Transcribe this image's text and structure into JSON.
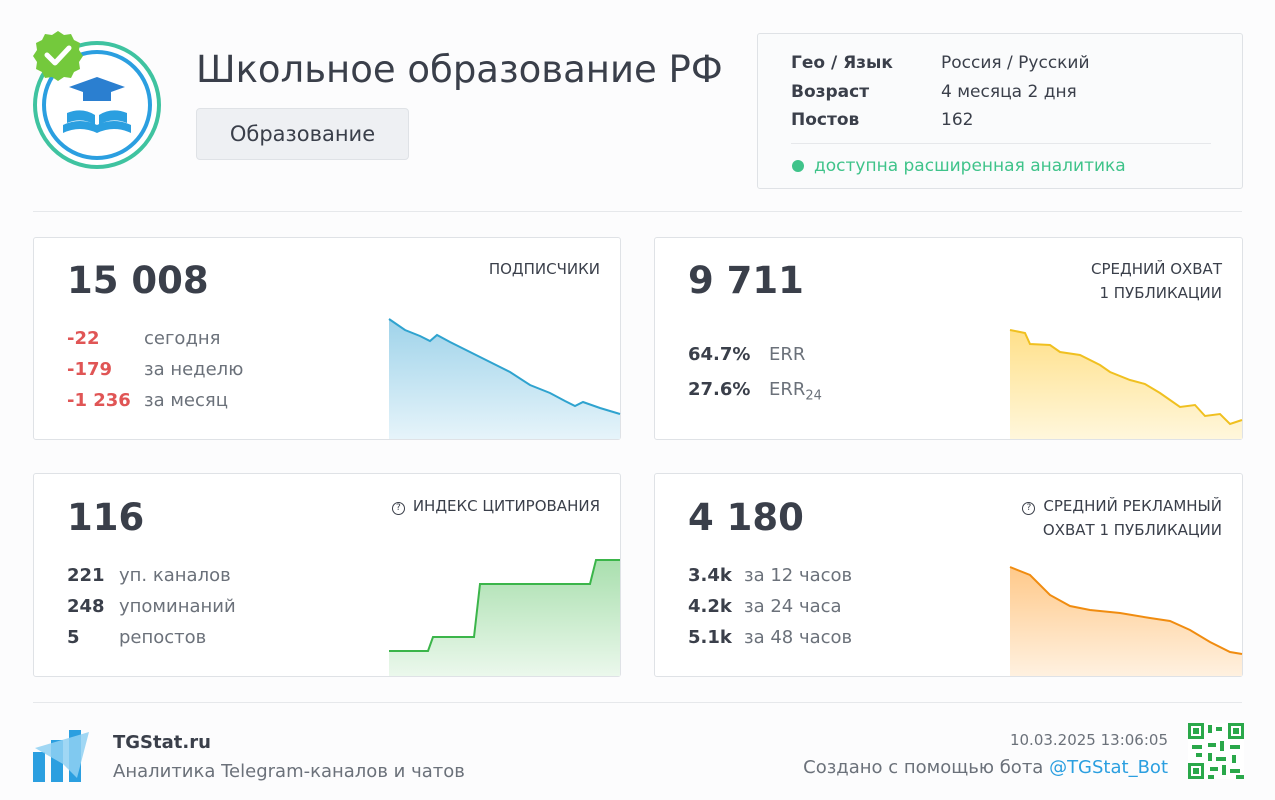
{
  "header": {
    "title": "Школьное образование РФ",
    "category": "Образование"
  },
  "info": {
    "rows": [
      [
        "Гео / Язык",
        "Россия / Русский"
      ],
      [
        "Возраст",
        "4 месяца 2 дня"
      ],
      [
        "Постов",
        "162"
      ]
    ],
    "status": "доступна расширенная аналитика"
  },
  "cards": [
    {
      "value": "15 008",
      "title_lines": [
        "ПОДПИСЧИКИ"
      ],
      "stats": [
        {
          "value": "-22",
          "label": "сегодня"
        },
        {
          "value": "-179",
          "label": "за неделю"
        },
        {
          "value": "-1 236",
          "label": "за месяц"
        }
      ]
    },
    {
      "value": "9 711",
      "title_lines": [
        "СРЕДНИЙ ОХВАТ",
        "1 ПУБЛИКАЦИИ"
      ],
      "stats": [
        {
          "value": "64.7%",
          "label": "ERR"
        },
        {
          "value": "27.6%",
          "label": "ERR",
          "sub": "24"
        }
      ]
    },
    {
      "value": "116",
      "title_lines": [
        "ИНДЕКС ЦИТИРОВАНИЯ"
      ],
      "stats": [
        {
          "value": "221",
          "label": "уп. каналов"
        },
        {
          "value": "248",
          "label": "упоминаний"
        },
        {
          "value": "5",
          "label": "репостов"
        }
      ]
    },
    {
      "value": "4 180",
      "title_lines": [
        "СРЕДНИЙ РЕКЛАМНЫЙ",
        "ОХВАТ 1 ПУБЛИКАЦИИ"
      ],
      "stats": [
        {
          "value": "3.4k",
          "label": "за 12 часов"
        },
        {
          "value": "4.2k",
          "label": "за 24 часа"
        },
        {
          "value": "5.1k",
          "label": "за 48 часов"
        }
      ]
    }
  ],
  "footer": {
    "brand": "TGStat.ru",
    "tagline": "Аналитика Telegram-каналов и чатов",
    "timestamp": "10.03.2025 13:06:05",
    "credit": "Создано с помощью бота",
    "handle": "@TGStat_Bot"
  }
}
